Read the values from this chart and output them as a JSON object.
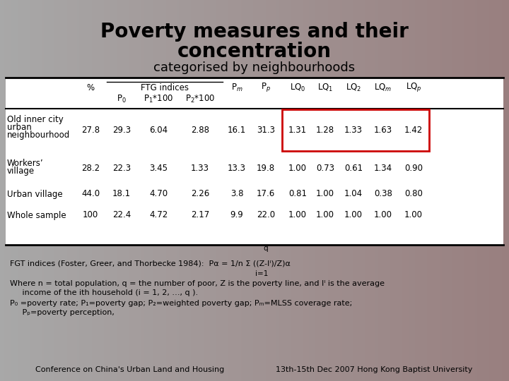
{
  "title_line1": "Poverty measures and their",
  "title_line2": "concentration",
  "subtitle": "categorised by neighbourhoods",
  "bg_color_left": "#a8a8a8",
  "bg_color_right": "#9a8080",
  "table_bg": "#ffffff",
  "rows": [
    [
      "Old inner city",
      "27.8",
      "29.3",
      "6.04",
      "2.88",
      "16.1",
      "31.3",
      "1.31",
      "1.28",
      "1.33",
      "1.63",
      "1.42"
    ],
    [
      "urban",
      "",
      "",
      "",
      "",
      "",
      "",
      "",
      "",
      "",
      "",
      ""
    ],
    [
      "neighbourhood",
      "",
      "",
      "",
      "",
      "",
      "",
      "",
      "",
      "",
      "",
      ""
    ],
    [
      "Workers’",
      "28.2",
      "22.3",
      "3.45",
      "1.33",
      "13.3",
      "19.8",
      "1.00",
      "0.73",
      "0.61",
      "1.34",
      "0.90"
    ],
    [
      "village",
      "",
      "",
      "",
      "",
      "",
      "",
      "",
      "",
      "",
      "",
      ""
    ],
    [
      "Urban village",
      "44.0",
      "18.1",
      "4.70",
      "2.26",
      "3.8",
      "17.6",
      "0.81",
      "1.00",
      "1.04",
      "0.38",
      "0.80"
    ],
    [
      "Whole sample",
      "100",
      "22.4",
      "4.72",
      "2.17",
      "9.9",
      "22.0",
      "1.00",
      "1.00",
      "1.00",
      "1.00",
      "1.00"
    ]
  ],
  "data_rows": [
    [
      "Old inner city\nurban\nneighbourhood",
      "27.8",
      "29.3",
      "6.04",
      "2.88",
      "16.1",
      "31.3",
      "1.31",
      "1.28",
      "1.33",
      "1.63",
      "1.42"
    ],
    [
      "Workers’\nvillage",
      "28.2",
      "22.3",
      "3.45",
      "1.33",
      "13.3",
      "19.8",
      "1.00",
      "0.73",
      "0.61",
      "1.34",
      "0.90"
    ],
    [
      "Urban village",
      "44.0",
      "18.1",
      "4.70",
      "2.26",
      "3.8",
      "17.6",
      "0.81",
      "1.00",
      "1.04",
      "0.38",
      "0.80"
    ],
    [
      "Whole sample",
      "100",
      "22.4",
      "4.72",
      "2.17",
      "9.9",
      "22.0",
      "1.00",
      "1.00",
      "1.00",
      "1.00",
      "1.00"
    ]
  ],
  "highlight_color": "#cc0000",
  "footnote1_q": "q",
  "footnote1": "FGT indices (Foster, Greer, and Thorbecke 1984):  Pα = 1/n Σ ((Z-Iᴵ)/Z)α",
  "footnote1_i": "i=1",
  "footnote2": "Where n = total population, q = the number of poor, Z is the poverty line, and Iᴵ is the average",
  "footnote2b": "     income of the ith household (i = 1, 2, …, q ).",
  "footnote3": "P₀ =poverty rate; P₁=poverty gap; P₂=weighted poverty gap; Pₘ=MLSS coverage rate;",
  "footnote3b": "     Pₚ=poverty perception,",
  "footer_left": "Conference on China's Urban Land and Housing",
  "footer_right": "13th-15th Dec 2007 Hong Kong Baptist University"
}
